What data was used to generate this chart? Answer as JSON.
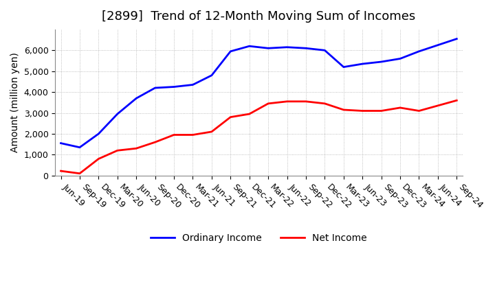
{
  "title": "[2899]  Trend of 12-Month Moving Sum of Incomes",
  "ylabel": "Amount (million yen)",
  "ylim": [
    0,
    7000
  ],
  "yticks": [
    0,
    1000,
    2000,
    3000,
    4000,
    5000,
    6000
  ],
  "x_labels": [
    "Jun-19",
    "Sep-19",
    "Dec-19",
    "Mar-20",
    "Jun-20",
    "Sep-20",
    "Dec-20",
    "Mar-21",
    "Jun-21",
    "Sep-21",
    "Dec-21",
    "Mar-22",
    "Jun-22",
    "Sep-22",
    "Dec-22",
    "Mar-23",
    "Jun-23",
    "Sep-23",
    "Dec-23",
    "Mar-24",
    "Jun-24",
    "Sep-24"
  ],
  "ordinary_income": [
    1550,
    1350,
    2000,
    2950,
    3700,
    4200,
    4250,
    4350,
    4800,
    5950,
    6200,
    6100,
    6150,
    6100,
    6000,
    5200,
    5350,
    5450,
    5600,
    5950,
    6250,
    6550
  ],
  "net_income": [
    220,
    100,
    800,
    1200,
    1300,
    1600,
    1950,
    1950,
    2100,
    2800,
    2950,
    3450,
    3550,
    3550,
    3450,
    3150,
    3100,
    3100,
    3250,
    3100,
    3350,
    3600
  ],
  "ordinary_color": "#0000ff",
  "net_color": "#ff0000",
  "line_width": 2.0,
  "title_fontsize": 13,
  "label_fontsize": 10,
  "tick_fontsize": 9,
  "background_color": "#ffffff",
  "plot_background": "#ffffff",
  "grid_color": "#aaaaaa",
  "grid_style": ":"
}
